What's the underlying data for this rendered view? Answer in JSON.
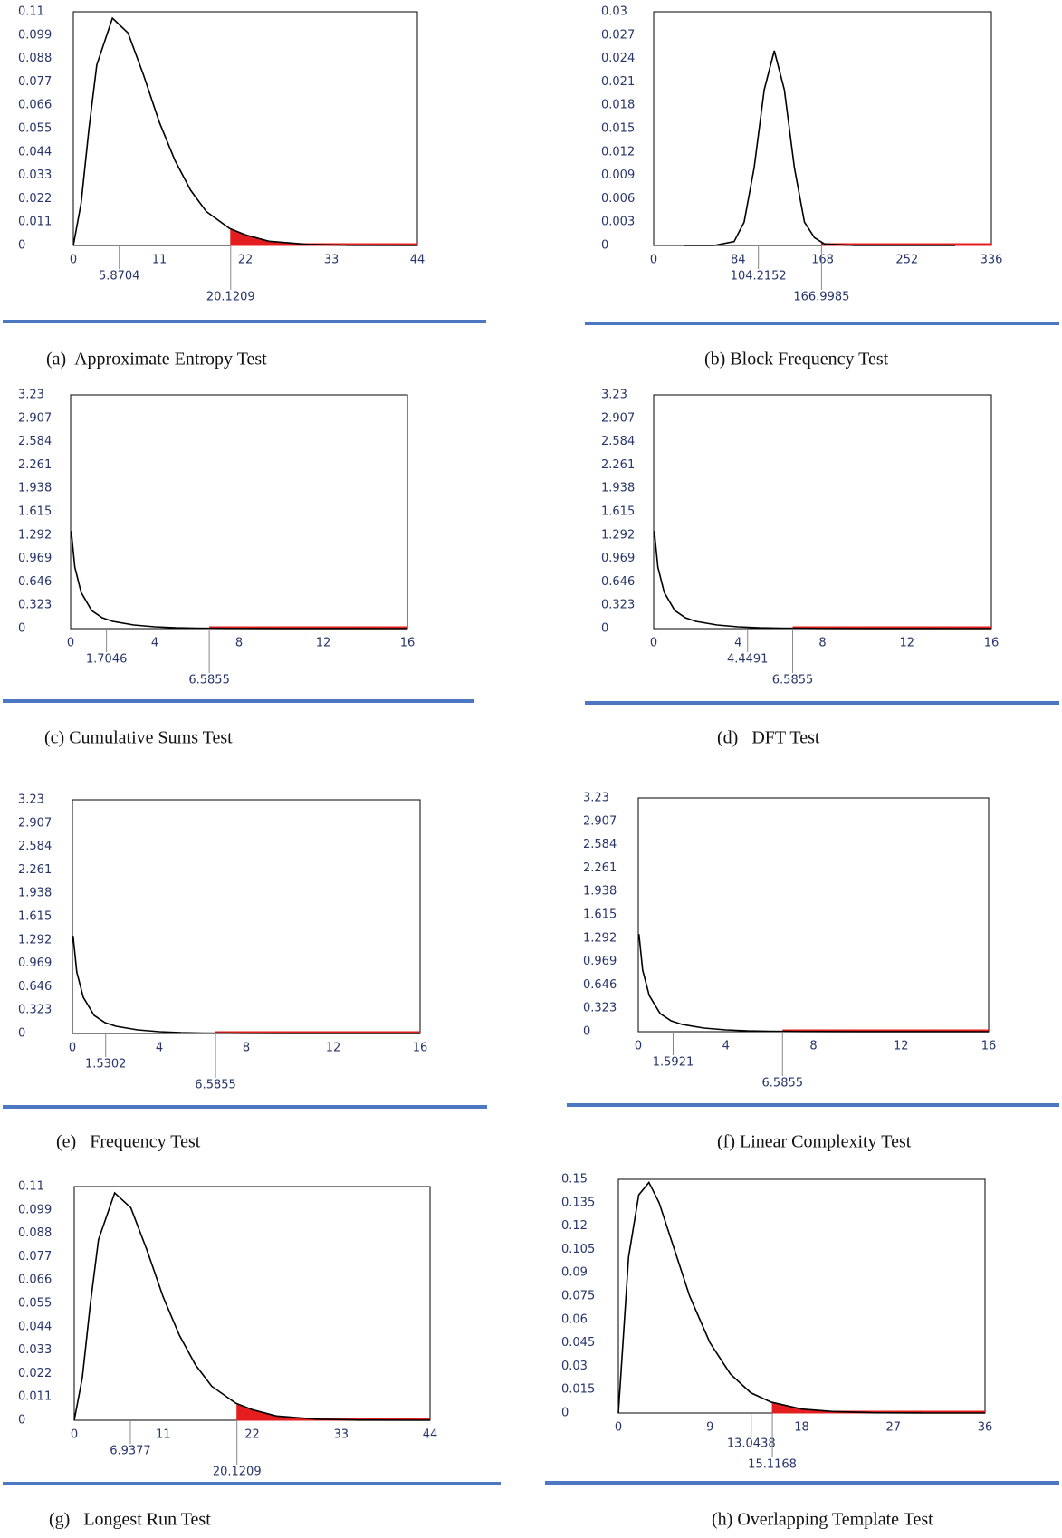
{
  "chart_data": [
    {
      "type": "line",
      "caption": "(a)  Approximate Entropy Test",
      "color": "#000000",
      "tail_color": "#e41e1e",
      "x": [
        0,
        1,
        2,
        3,
        5,
        7,
        9,
        11,
        13,
        15,
        17,
        20,
        22,
        25,
        30,
        35,
        44
      ],
      "values": [
        0,
        0.02,
        0.055,
        0.085,
        0.107,
        0.1,
        0.08,
        0.058,
        0.04,
        0.026,
        0.016,
        0.008,
        0.005,
        0.002,
        0.0005,
        0.0001,
        0
      ],
      "xlim": [
        0,
        44
      ],
      "xticks": [
        0,
        11,
        22,
        33,
        44
      ],
      "ylim": [
        0,
        0.11
      ],
      "yticks": [
        0,
        0.011,
        0.022,
        0.033,
        0.044,
        0.055,
        0.066,
        0.077,
        0.088,
        0.099,
        0.11
      ],
      "statistic": 5.8704,
      "critical": 20.1209
    },
    {
      "type": "line",
      "caption": "(b) Block Frequency Test",
      "color": "#000000",
      "tail_color": "#e41e1e",
      "x": [
        30,
        60,
        80,
        90,
        100,
        110,
        120,
        130,
        140,
        150,
        160,
        170,
        200,
        300
      ],
      "values": [
        0,
        0,
        0.0005,
        0.003,
        0.01,
        0.02,
        0.025,
        0.02,
        0.01,
        0.003,
        0.001,
        0.0002,
        0,
        0
      ],
      "xlim": [
        0,
        336
      ],
      "xticks": [
        0,
        84,
        168,
        252,
        336
      ],
      "ylim": [
        0,
        0.03
      ],
      "yticks": [
        0,
        0.003,
        0.006,
        0.009,
        0.012,
        0.015,
        0.018,
        0.021,
        0.024,
        0.027,
        0.03
      ],
      "statistic": 104.2152,
      "critical": 166.9985
    },
    {
      "type": "line",
      "caption": "(c) Cumulative Sums Test",
      "color": "#000000",
      "tail_color": "#e41e1e",
      "x": [
        0.03,
        0.2,
        0.5,
        1,
        1.5,
        2,
        3,
        4,
        5,
        6,
        8,
        10,
        16
      ],
      "values": [
        1.35,
        0.85,
        0.5,
        0.25,
        0.15,
        0.1,
        0.05,
        0.025,
        0.012,
        0.006,
        0.002,
        0.0005,
        0
      ],
      "xlim": [
        0,
        16
      ],
      "xticks": [
        0,
        4,
        8,
        12,
        16
      ],
      "ylim": [
        0,
        3.23
      ],
      "yticks": [
        0,
        0.323,
        0.646,
        0.969,
        1.292,
        1.615,
        1.938,
        2.261,
        2.584,
        2.907,
        3.23
      ],
      "statistic": 1.7046,
      "critical": 6.5855
    },
    {
      "type": "line",
      "caption": "(d)   DFT Test",
      "color": "#000000",
      "tail_color": "#e41e1e",
      "x": [
        0.03,
        0.2,
        0.5,
        1,
        1.5,
        2,
        3,
        4,
        5,
        6,
        8,
        10,
        16
      ],
      "values": [
        1.35,
        0.85,
        0.5,
        0.25,
        0.15,
        0.1,
        0.05,
        0.025,
        0.012,
        0.006,
        0.002,
        0.0005,
        0
      ],
      "xlim": [
        0,
        16
      ],
      "xticks": [
        0,
        4,
        8,
        12,
        16
      ],
      "ylim": [
        0,
        3.23
      ],
      "yticks": [
        0,
        0.323,
        0.646,
        0.969,
        1.292,
        1.615,
        1.938,
        2.261,
        2.584,
        2.907,
        3.23
      ],
      "statistic": 4.4491,
      "critical": 6.5855
    },
    {
      "type": "line",
      "caption": "(e)   Frequency Test",
      "color": "#000000",
      "tail_color": "#e41e1e",
      "x": [
        0.03,
        0.2,
        0.5,
        1,
        1.5,
        2,
        3,
        4,
        5,
        6,
        8,
        10,
        16
      ],
      "values": [
        1.35,
        0.85,
        0.5,
        0.25,
        0.15,
        0.1,
        0.05,
        0.025,
        0.012,
        0.006,
        0.002,
        0.0005,
        0
      ],
      "xlim": [
        0,
        16
      ],
      "xticks": [
        0,
        4,
        8,
        12,
        16
      ],
      "ylim": [
        0,
        3.23
      ],
      "yticks": [
        0,
        0.323,
        0.646,
        0.969,
        1.292,
        1.615,
        1.938,
        2.261,
        2.584,
        2.907,
        3.23
      ],
      "statistic": 1.5302,
      "critical": 6.5855
    },
    {
      "type": "line",
      "caption": "(f) Linear Complexity Test",
      "color": "#000000",
      "tail_color": "#e41e1e",
      "x": [
        0.03,
        0.2,
        0.5,
        1,
        1.5,
        2,
        3,
        4,
        5,
        6,
        8,
        10,
        16
      ],
      "values": [
        1.35,
        0.85,
        0.5,
        0.25,
        0.15,
        0.1,
        0.05,
        0.025,
        0.012,
        0.006,
        0.002,
        0.0005,
        0
      ],
      "xlim": [
        0,
        16
      ],
      "xticks": [
        0,
        4,
        8,
        12,
        16
      ],
      "ylim": [
        0,
        3.23
      ],
      "yticks": [
        0,
        0.323,
        0.646,
        0.969,
        1.292,
        1.615,
        1.938,
        2.261,
        2.584,
        2.907,
        3.23
      ],
      "statistic": 1.5921,
      "critical": 6.5855
    },
    {
      "type": "line",
      "caption": "(g)   Longest Run Test",
      "color": "#000000",
      "tail_color": "#e41e1e",
      "x": [
        0,
        1,
        2,
        3,
        5,
        7,
        9,
        11,
        13,
        15,
        17,
        20,
        22,
        25,
        30,
        35,
        44
      ],
      "values": [
        0,
        0.02,
        0.055,
        0.085,
        0.107,
        0.1,
        0.08,
        0.058,
        0.04,
        0.026,
        0.016,
        0.008,
        0.005,
        0.002,
        0.0005,
        0.0001,
        0
      ],
      "xlim": [
        0,
        44
      ],
      "xticks": [
        0,
        11,
        22,
        33,
        44
      ],
      "ylim": [
        0,
        0.11
      ],
      "yticks": [
        0,
        0.011,
        0.022,
        0.033,
        0.044,
        0.055,
        0.066,
        0.077,
        0.088,
        0.099,
        0.11
      ],
      "statistic": 6.9377,
      "critical": 20.1209
    },
    {
      "type": "line",
      "caption": "(h) Overlapping Template Test",
      "color": "#000000",
      "tail_color": "#e41e1e",
      "x": [
        0,
        1,
        2,
        3,
        4,
        5,
        7,
        9,
        11,
        13,
        15,
        18,
        21,
        25,
        30,
        36
      ],
      "values": [
        0,
        0.1,
        0.14,
        0.148,
        0.135,
        0.115,
        0.075,
        0.045,
        0.025,
        0.013,
        0.007,
        0.0025,
        0.001,
        0.0002,
        0,
        0
      ],
      "xlim": [
        0,
        36
      ],
      "xticks": [
        0,
        9,
        18,
        27,
        36
      ],
      "ylim": [
        0,
        0.15
      ],
      "yticks": [
        0,
        0.015,
        0.03,
        0.045,
        0.06,
        0.075,
        0.09,
        0.105,
        0.12,
        0.135,
        0.15
      ],
      "statistic": 13.0438,
      "critical": 15.1168
    }
  ]
}
